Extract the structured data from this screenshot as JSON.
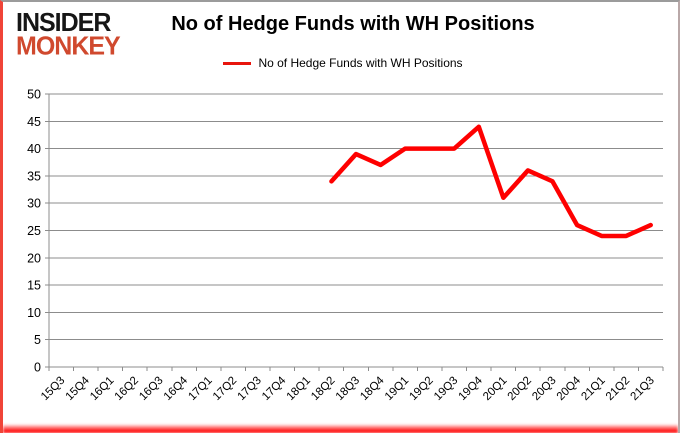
{
  "logo": {
    "line1": "INSIDER",
    "line2": "MONKEY"
  },
  "title": "No of Hedge Funds with WH Positions",
  "legend": {
    "label": "No of Hedge Funds with WH Positions",
    "color": "#e8150d"
  },
  "chart_data": {
    "type": "line",
    "title": "No of Hedge Funds with WH Positions",
    "categories": [
      "15Q3",
      "15Q4",
      "16Q1",
      "16Q2",
      "16Q3",
      "16Q4",
      "17Q1",
      "17Q2",
      "17Q3",
      "17Q4",
      "18Q1",
      "18Q2",
      "18Q3",
      "18Q4",
      "19Q1",
      "19Q2",
      "19Q3",
      "19Q4",
      "20Q1",
      "20Q2",
      "20Q3",
      "20Q4",
      "21Q1",
      "21Q2",
      "21Q3"
    ],
    "series": [
      {
        "name": "No of Hedge Funds with WH Positions",
        "color": "#fe0000",
        "values": [
          null,
          null,
          null,
          null,
          null,
          null,
          null,
          null,
          null,
          null,
          null,
          34,
          39,
          37,
          40,
          40,
          40,
          44,
          31,
          36,
          34,
          26,
          24,
          24,
          26
        ]
      }
    ],
    "xlabel": "",
    "ylabel": "",
    "ylim": [
      0,
      50
    ],
    "yticks": [
      0,
      5,
      10,
      15,
      20,
      25,
      30,
      35,
      40,
      45,
      50
    ],
    "grid": "horizontal",
    "legend_position": "top-center"
  },
  "colors": {
    "line": "#fe0000",
    "grid": "#8c8c8c",
    "axis": "#8c8c8c",
    "text": "#000000",
    "logo_black": "#161616",
    "logo_red": "#d0492e",
    "border_red": "#ff0000",
    "background": "#ffffff"
  }
}
